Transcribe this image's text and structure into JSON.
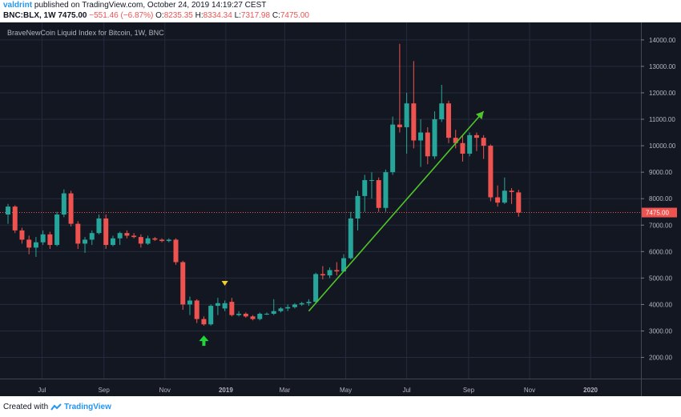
{
  "header": {
    "username": "valdrint",
    "published": "published on TradingView.com, October 24, 2019 14:19:27 CEST",
    "symbol": "BNC:BLX, 1W",
    "last": "7475.00",
    "change": "−551.46 (−6.87%)",
    "o_label": "O:",
    "o_val": "8235.35",
    "h_label": "H:",
    "h_val": "8334.34",
    "l_label": "L:",
    "l_val": "7317.98",
    "c_label": "C:",
    "c_val": "7475.00"
  },
  "footer": {
    "created_with": "Created with",
    "brand": "TradingView"
  },
  "colors": {
    "background": "#131722",
    "grid": "#262b3e",
    "up": "#26a69a",
    "down": "#ef5350",
    "trendline": "#4fc52a",
    "arrow_up": "#22d33a",
    "marker": "#f5d11f",
    "text": "#b2b5be"
  },
  "chart_data": {
    "type": "candlestick",
    "title": "BraveNewCoin Liquid Index for Bitcoin, 1W, BNC",
    "interval": "1W",
    "ylim": [
      1200,
      14600
    ],
    "y_ticks": [
      "14000.00",
      "13000.00",
      "12000.00",
      "11000.00",
      "10000.00",
      "9000.00",
      "8000.00",
      "7000.00",
      "6000.00",
      "5000.00",
      "4000.00",
      "3000.00",
      "2000.00"
    ],
    "x_ticks": [
      "Jul",
      "Sep",
      "Nov",
      "2019",
      "Mar",
      "May",
      "Jul",
      "Sep",
      "Nov",
      "2020"
    ],
    "last_price": "7475.00",
    "candles": [
      {
        "d": "2018-05-28",
        "o": 7400,
        "h": 7800,
        "l": 7050,
        "c": 7700
      },
      {
        "d": "2018-06-04",
        "o": 7700,
        "h": 7750,
        "l": 6700,
        "c": 6800
      },
      {
        "d": "2018-06-11",
        "o": 6800,
        "h": 6900,
        "l": 6300,
        "c": 6450
      },
      {
        "d": "2018-06-18",
        "o": 6450,
        "h": 6600,
        "l": 5900,
        "c": 6150
      },
      {
        "d": "2018-06-25",
        "o": 6150,
        "h": 6550,
        "l": 5800,
        "c": 6350
      },
      {
        "d": "2018-07-02",
        "o": 6350,
        "h": 6800,
        "l": 6250,
        "c": 6650
      },
      {
        "d": "2018-07-09",
        "o": 6650,
        "h": 6750,
        "l": 6100,
        "c": 6250
      },
      {
        "d": "2018-07-16",
        "o": 6250,
        "h": 7500,
        "l": 6200,
        "c": 7400
      },
      {
        "d": "2018-07-23",
        "o": 7400,
        "h": 8350,
        "l": 7300,
        "c": 8200
      },
      {
        "d": "2018-07-30",
        "o": 8200,
        "h": 8300,
        "l": 6950,
        "c": 7050
      },
      {
        "d": "2018-08-06",
        "o": 7050,
        "h": 7150,
        "l": 6100,
        "c": 6300
      },
      {
        "d": "2018-08-13",
        "o": 6300,
        "h": 6550,
        "l": 5950,
        "c": 6450
      },
      {
        "d": "2018-08-20",
        "o": 6450,
        "h": 6800,
        "l": 6250,
        "c": 6700
      },
      {
        "d": "2018-08-27",
        "o": 6700,
        "h": 7400,
        "l": 6650,
        "c": 7250
      },
      {
        "d": "2018-09-03",
        "o": 7250,
        "h": 7400,
        "l": 6100,
        "c": 6250
      },
      {
        "d": "2018-09-10",
        "o": 6250,
        "h": 6600,
        "l": 6200,
        "c": 6500
      },
      {
        "d": "2018-09-17",
        "o": 6500,
        "h": 6750,
        "l": 6250,
        "c": 6700
      },
      {
        "d": "2018-09-24",
        "o": 6700,
        "h": 6800,
        "l": 6500,
        "c": 6600
      },
      {
        "d": "2018-10-01",
        "o": 6600,
        "h": 6700,
        "l": 6500,
        "c": 6550
      },
      {
        "d": "2018-10-08",
        "o": 6550,
        "h": 6650,
        "l": 6150,
        "c": 6300
      },
      {
        "d": "2018-10-15",
        "o": 6300,
        "h": 6600,
        "l": 6250,
        "c": 6500
      },
      {
        "d": "2018-10-22",
        "o": 6500,
        "h": 6550,
        "l": 6400,
        "c": 6450
      },
      {
        "d": "2018-10-29",
        "o": 6450,
        "h": 6500,
        "l": 6350,
        "c": 6400
      },
      {
        "d": "2018-11-05",
        "o": 6400,
        "h": 6500,
        "l": 6350,
        "c": 6450
      },
      {
        "d": "2018-11-12",
        "o": 6450,
        "h": 6500,
        "l": 5500,
        "c": 5600
      },
      {
        "d": "2018-11-19",
        "o": 5600,
        "h": 5650,
        "l": 3800,
        "c": 4000
      },
      {
        "d": "2018-11-26",
        "o": 4000,
        "h": 4300,
        "l": 3600,
        "c": 4150
      },
      {
        "d": "2018-12-03",
        "o": 4150,
        "h": 4200,
        "l": 3300,
        "c": 3450
      },
      {
        "d": "2018-12-10",
        "o": 3450,
        "h": 3550,
        "l": 3200,
        "c": 3250
      },
      {
        "d": "2018-12-17",
        "o": 3250,
        "h": 4000,
        "l": 3200,
        "c": 3950
      },
      {
        "d": "2018-12-24",
        "o": 3950,
        "h": 4250,
        "l": 3600,
        "c": 4050
      },
      {
        "d": "2018-12-31",
        "o": 3850,
        "h": 4150,
        "l": 3750,
        "c": 4050
      },
      {
        "d": "2019-01-07",
        "o": 4100,
        "h": 4250,
        "l": 3550,
        "c": 3600
      },
      {
        "d": "2019-01-14",
        "o": 3600,
        "h": 3750,
        "l": 3550,
        "c": 3650
      },
      {
        "d": "2019-01-21",
        "o": 3650,
        "h": 3700,
        "l": 3500,
        "c": 3550
      },
      {
        "d": "2019-01-28",
        "o": 3550,
        "h": 3600,
        "l": 3400,
        "c": 3450
      },
      {
        "d": "2019-02-04",
        "o": 3450,
        "h": 3700,
        "l": 3400,
        "c": 3650
      },
      {
        "d": "2019-02-11",
        "o": 3650,
        "h": 3700,
        "l": 3600,
        "c": 3650
      },
      {
        "d": "2019-02-18",
        "o": 3650,
        "h": 4200,
        "l": 3600,
        "c": 3750
      },
      {
        "d": "2019-02-25",
        "o": 3750,
        "h": 3900,
        "l": 3700,
        "c": 3850
      },
      {
        "d": "2019-03-04",
        "o": 3850,
        "h": 4000,
        "l": 3750,
        "c": 3900
      },
      {
        "d": "2019-03-11",
        "o": 3900,
        "h": 4050,
        "l": 3850,
        "c": 4000
      },
      {
        "d": "2019-03-18",
        "o": 4000,
        "h": 4100,
        "l": 3950,
        "c": 4050
      },
      {
        "d": "2019-03-25",
        "o": 4050,
        "h": 4200,
        "l": 3950,
        "c": 4100
      },
      {
        "d": "2019-04-01",
        "o": 4100,
        "h": 5200,
        "l": 4050,
        "c": 5150
      },
      {
        "d": "2019-04-08",
        "o": 5150,
        "h": 5450,
        "l": 4950,
        "c": 5100
      },
      {
        "d": "2019-04-15",
        "o": 5100,
        "h": 5400,
        "l": 5000,
        "c": 5300
      },
      {
        "d": "2019-04-22",
        "o": 5300,
        "h": 5600,
        "l": 5100,
        "c": 5250
      },
      {
        "d": "2019-04-29",
        "o": 5250,
        "h": 5900,
        "l": 5250,
        "c": 5750
      },
      {
        "d": "2019-05-06",
        "o": 5750,
        "h": 7500,
        "l": 5700,
        "c": 7250
      },
      {
        "d": "2019-05-13",
        "o": 7250,
        "h": 8300,
        "l": 6800,
        "c": 8100
      },
      {
        "d": "2019-05-20",
        "o": 8100,
        "h": 8900,
        "l": 7500,
        "c": 8700
      },
      {
        "d": "2019-05-27",
        "o": 8700,
        "h": 9000,
        "l": 8000,
        "c": 8700
      },
      {
        "d": "2019-06-03",
        "o": 8700,
        "h": 8800,
        "l": 7500,
        "c": 7650
      },
      {
        "d": "2019-06-10",
        "o": 7650,
        "h": 9100,
        "l": 7500,
        "c": 9000
      },
      {
        "d": "2019-06-17",
        "o": 9000,
        "h": 11100,
        "l": 8900,
        "c": 10800
      },
      {
        "d": "2019-06-24",
        "o": 10800,
        "h": 13850,
        "l": 10500,
        "c": 10700
      },
      {
        "d": "2019-07-01",
        "o": 10700,
        "h": 12000,
        "l": 9700,
        "c": 11600
      },
      {
        "d": "2019-07-08",
        "o": 11600,
        "h": 13200,
        "l": 9900,
        "c": 10200
      },
      {
        "d": "2019-07-15",
        "o": 10200,
        "h": 11000,
        "l": 9200,
        "c": 10500
      },
      {
        "d": "2019-07-22",
        "o": 10500,
        "h": 10700,
        "l": 9300,
        "c": 9600
      },
      {
        "d": "2019-07-29",
        "o": 9600,
        "h": 11300,
        "l": 9500,
        "c": 11000
      },
      {
        "d": "2019-08-05",
        "o": 11000,
        "h": 12300,
        "l": 10900,
        "c": 11600
      },
      {
        "d": "2019-08-12",
        "o": 11600,
        "h": 11700,
        "l": 10100,
        "c": 10300
      },
      {
        "d": "2019-08-19",
        "o": 10300,
        "h": 10600,
        "l": 9900,
        "c": 10100
      },
      {
        "d": "2019-08-26",
        "o": 10100,
        "h": 10400,
        "l": 9400,
        "c": 9700
      },
      {
        "d": "2019-09-02",
        "o": 9700,
        "h": 10500,
        "l": 9600,
        "c": 10400
      },
      {
        "d": "2019-09-09",
        "o": 10400,
        "h": 10500,
        "l": 9800,
        "c": 10300
      },
      {
        "d": "2019-09-16",
        "o": 10300,
        "h": 10400,
        "l": 9500,
        "c": 10000
      },
      {
        "d": "2019-09-23",
        "o": 10000,
        "h": 10050,
        "l": 7900,
        "c": 8050
      },
      {
        "d": "2019-09-30",
        "o": 8050,
        "h": 8500,
        "l": 7700,
        "c": 7850
      },
      {
        "d": "2019-10-07",
        "o": 7850,
        "h": 8800,
        "l": 7800,
        "c": 8300
      },
      {
        "d": "2019-10-14",
        "o": 8300,
        "h": 8400,
        "l": 7800,
        "c": 8250
      },
      {
        "d": "2019-10-21",
        "o": 8235.35,
        "h": 8334.34,
        "l": 7317.98,
        "c": 7475
      }
    ],
    "annotations": [
      {
        "type": "trendline",
        "from": {
          "d": "2019-03-25",
          "v": 3750
        },
        "to": {
          "d": "2019-09-16",
          "v": 11300
        }
      },
      {
        "type": "arrow_up",
        "d": "2018-12-10",
        "v": 2650
      },
      {
        "type": "marker_down",
        "d": "2018-12-31",
        "v": 4800
      }
    ]
  }
}
